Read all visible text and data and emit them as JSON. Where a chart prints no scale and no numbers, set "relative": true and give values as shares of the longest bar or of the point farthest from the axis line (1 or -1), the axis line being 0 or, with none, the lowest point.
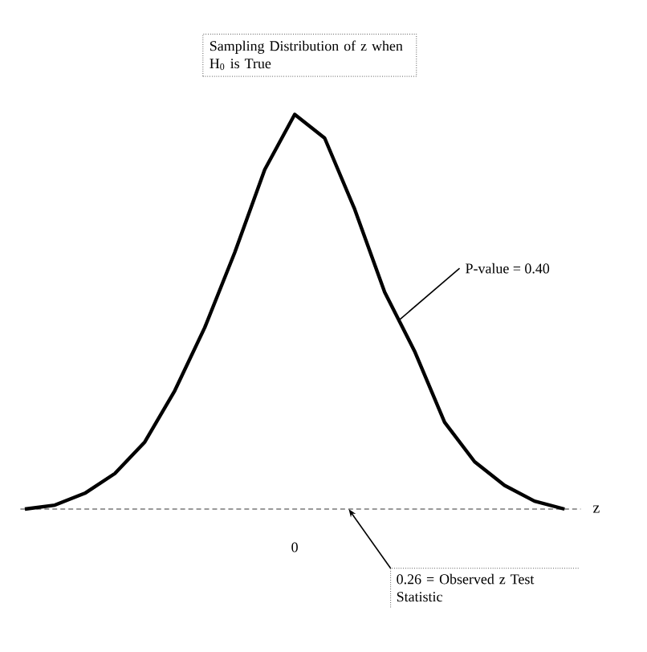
{
  "chart_data": {
    "type": "line",
    "relative": true,
    "title": "Sampling Distribution of z when H$_{0}$ is True",
    "xlabel": "z",
    "categories": [
      null,
      null,
      null,
      null,
      null,
      null,
      null,
      null,
      null,
      null,
      null,
      null,
      null,
      null,
      null,
      null,
      null,
      null,
      null
    ],
    "values": [
      0.0,
      0.01,
      0.04,
      0.09,
      0.17,
      0.3,
      0.46,
      0.65,
      0.86,
      1.0,
      0.94,
      0.76,
      0.55,
      0.4,
      0.22,
      0.12,
      0.06,
      0.02,
      0.0
    ],
    "color": "#000000",
    "marker": "none",
    "annotations": [
      "0",
      "P-value = 0.40",
      "0.26 = Observed z Test Statistic"
    ]
  }
}
